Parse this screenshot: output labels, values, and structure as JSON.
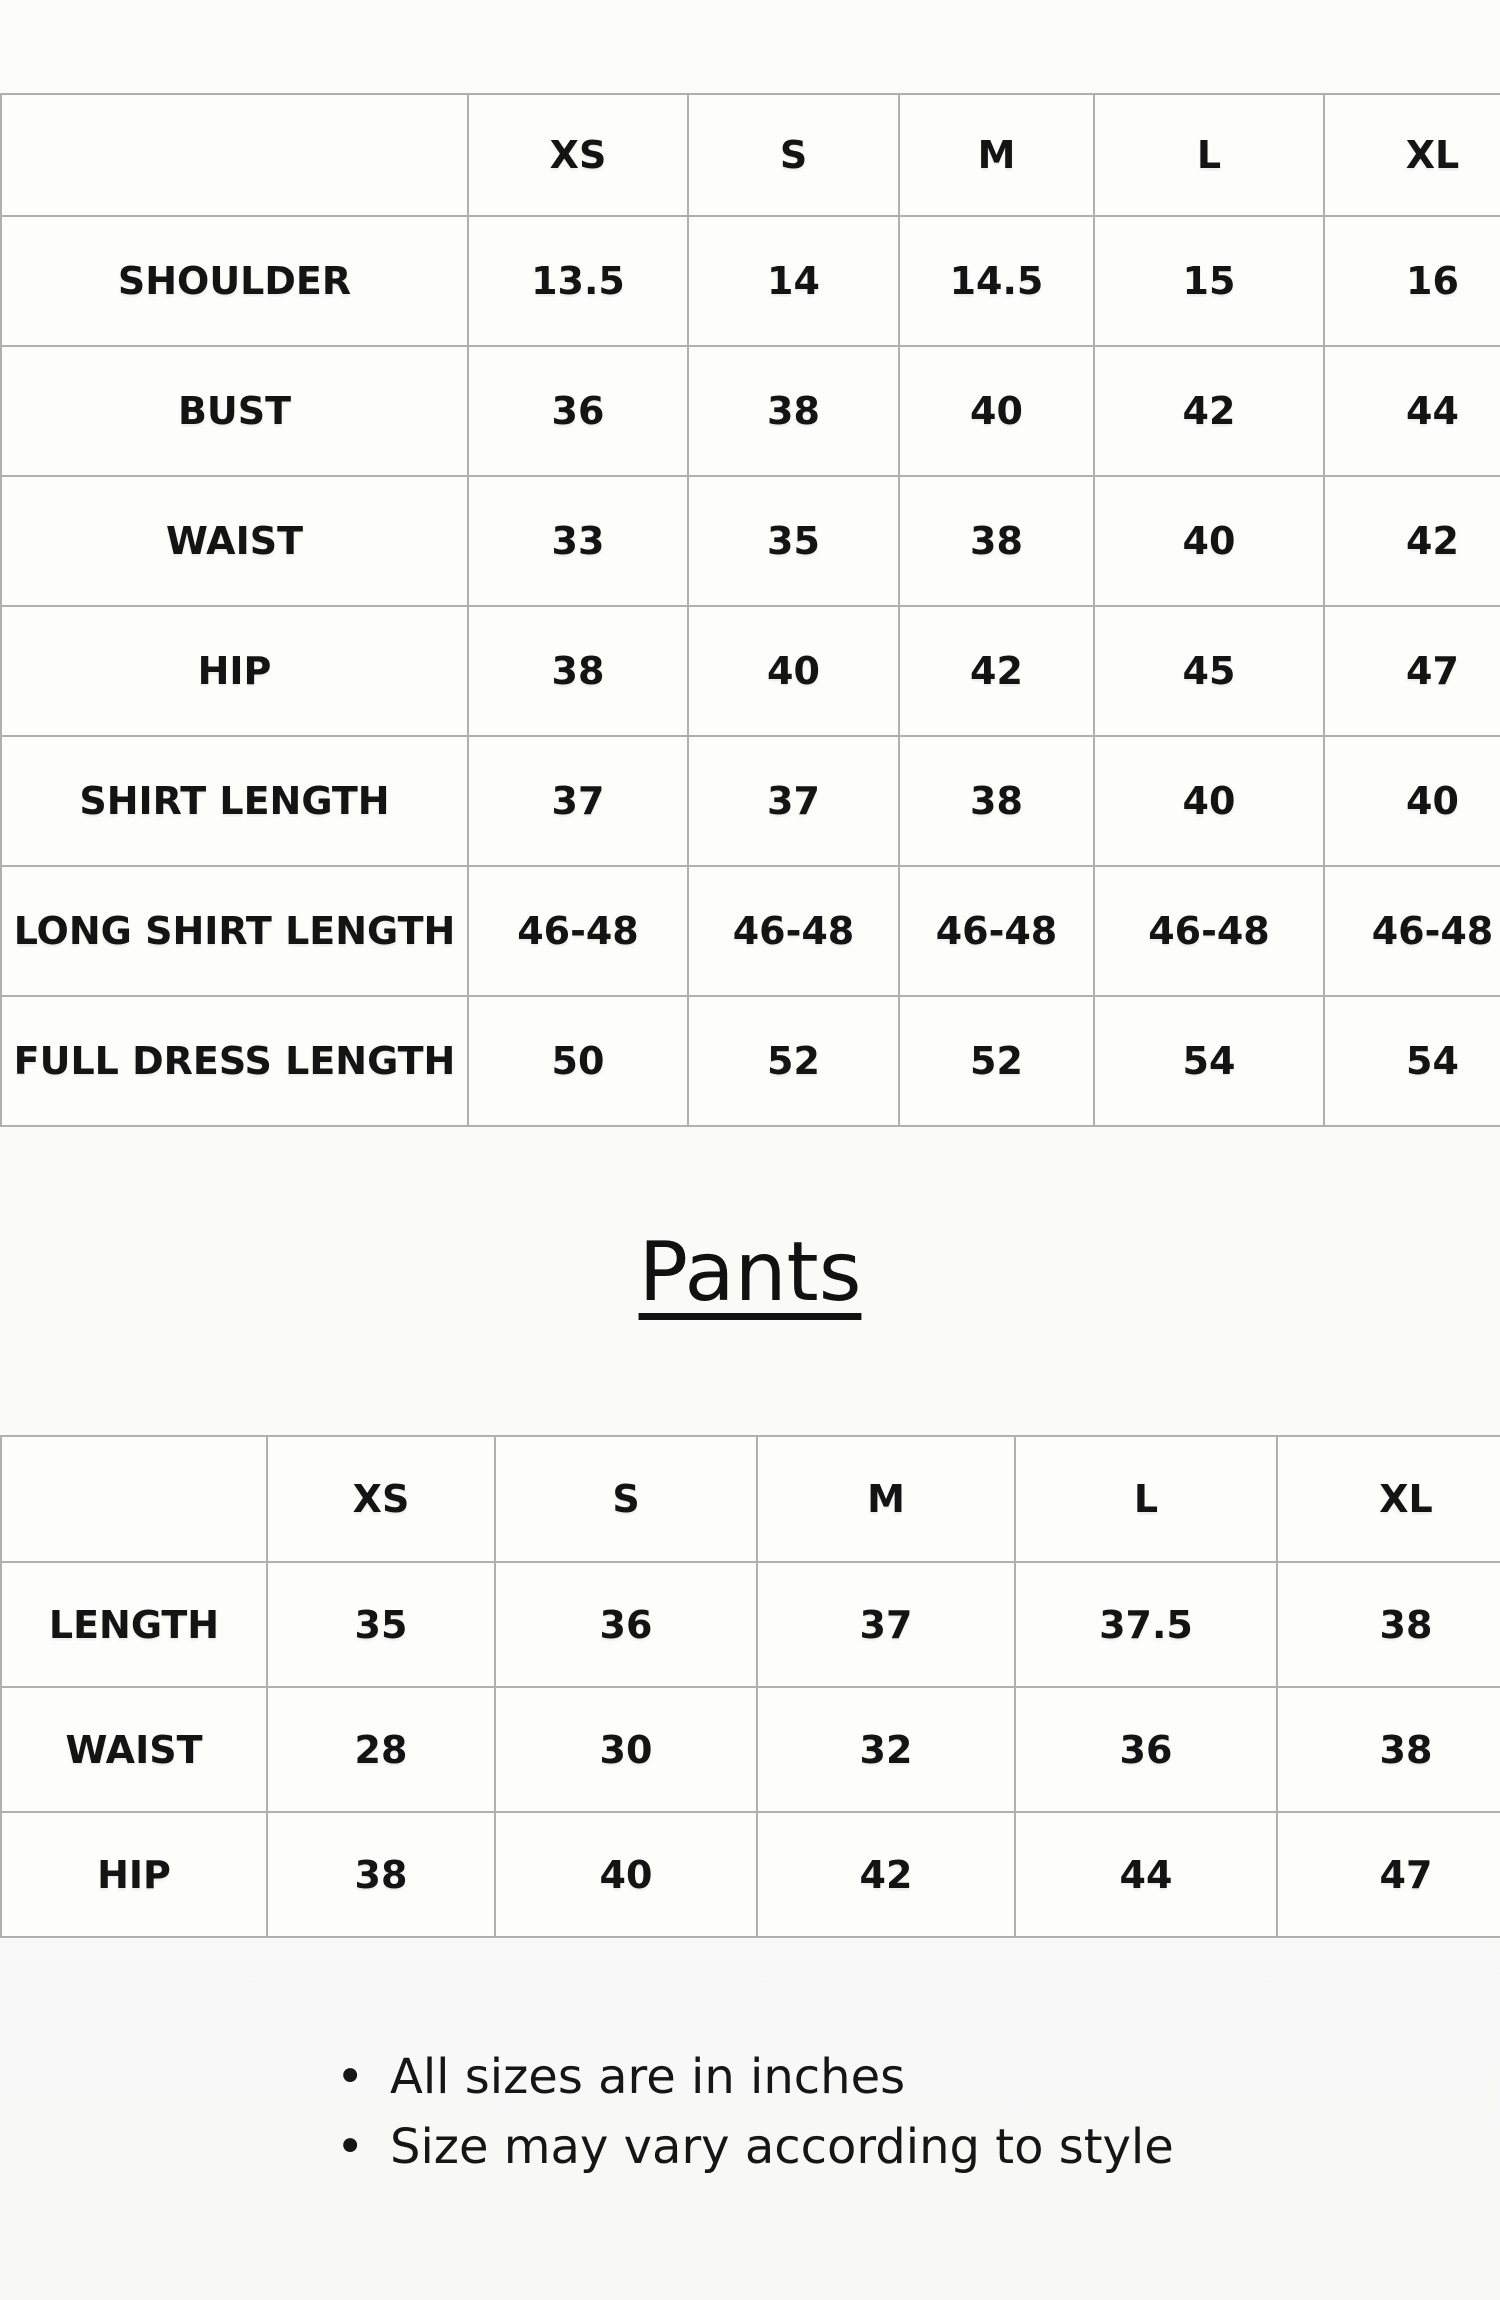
{
  "colors": {
    "page_background": "#f8f8f7",
    "cell_background": "#fdfdfc",
    "grid_border": "#b0b0b0",
    "text": "#141414"
  },
  "shirt_table": {
    "corner_label": "",
    "sizes": [
      "XS",
      "S",
      "M",
      "L",
      "XL"
    ],
    "rows": [
      {
        "label": "SHOULDER",
        "values": [
          "13.5",
          "14",
          "14.5",
          "15",
          "16"
        ]
      },
      {
        "label": "BUST",
        "values": [
          "36",
          "38",
          "40",
          "42",
          "44"
        ]
      },
      {
        "label": "WAIST",
        "values": [
          "33",
          "35",
          "38",
          "40",
          "42"
        ]
      },
      {
        "label": "HIP",
        "values": [
          "38",
          "40",
          "42",
          "45",
          "47"
        ]
      },
      {
        "label": "SHIRT LENGTH",
        "values": [
          "37",
          "37",
          "38",
          "40",
          "40"
        ]
      },
      {
        "label": "LONG SHIRT LENGTH",
        "values": [
          "46-48",
          "46-48",
          "46-48",
          "46-48",
          "46-48"
        ]
      },
      {
        "label": "FULL DRESS LENGTH",
        "values": [
          "50",
          "52",
          "52",
          "54",
          "54"
        ]
      }
    ]
  },
  "pants_heading": "Pants",
  "pants_table": {
    "corner_label": "",
    "sizes": [
      "XS",
      "S",
      "M",
      "L",
      "XL"
    ],
    "rows": [
      {
        "label": "LENGTH",
        "values": [
          "35",
          "36",
          "37",
          "37.5",
          "38"
        ]
      },
      {
        "label": "WAIST",
        "values": [
          "28",
          "30",
          "32",
          "36",
          "38"
        ]
      },
      {
        "label": "HIP",
        "values": [
          "38",
          "40",
          "42",
          "44",
          "47"
        ]
      }
    ]
  },
  "notes": [
    "All sizes are in inches",
    "Size may vary according to style"
  ]
}
